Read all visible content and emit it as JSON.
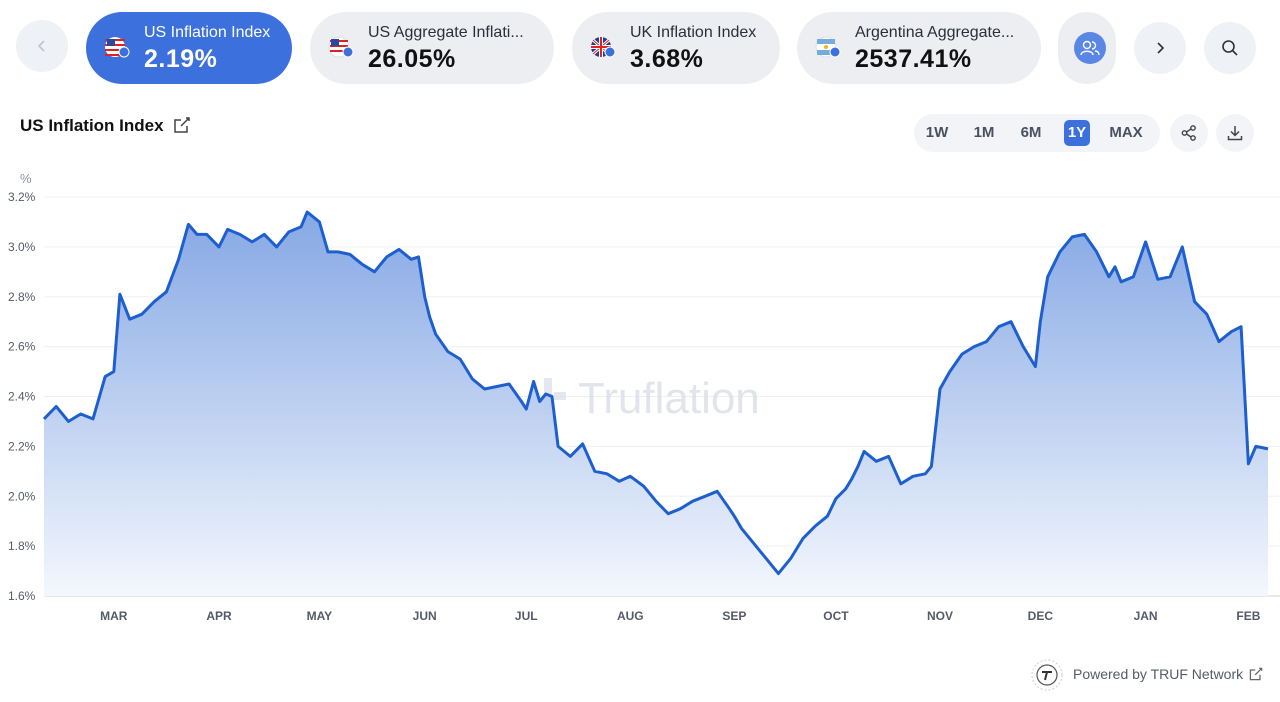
{
  "carousel": {
    "items": [
      {
        "title": "US Inflation Index",
        "value": "2.19%",
        "active": true,
        "flag": "us-flag-icon"
      },
      {
        "title": "US Aggregate Inflati...",
        "value": "26.05%",
        "active": false,
        "flag": "us-flag-icon"
      },
      {
        "title": "UK Inflation Index",
        "value": "3.68%",
        "active": false,
        "flag": "uk-flag-icon"
      },
      {
        "title": "Argentina Aggregate...",
        "value": "2537.41%",
        "active": false,
        "flag": "argentina-flag-icon"
      }
    ],
    "prev_icon": "chevron-left-icon",
    "next_icon": "chevron-right-icon",
    "search_icon": "search-icon",
    "people_icon": "users-icon"
  },
  "header": {
    "title": "US Inflation Index",
    "ranges": [
      "1W",
      "1M",
      "6M",
      "1Y",
      "MAX"
    ],
    "active_range": "1Y",
    "share_icon": "share-icon",
    "download_icon": "download-icon"
  },
  "watermark": "Truflation",
  "footer": {
    "text": "Powered by TRUF Network"
  },
  "colors": {
    "accent": "#3c70dd",
    "line": "#1e5fd0",
    "fill_top": "#7fa3e3",
    "fill_bottom": "#f3f7fd"
  },
  "chart_data": {
    "type": "area",
    "ylabel": "%",
    "ylim": [
      1.6,
      3.2
    ],
    "yticks": [
      "3.2%",
      "3.0%",
      "2.8%",
      "2.6%",
      "2.4%",
      "2.2%",
      "2.0%",
      "1.8%",
      "1.6%"
    ],
    "ytick_values": [
      3.2,
      3.0,
      2.8,
      2.6,
      2.4,
      2.2,
      2.0,
      1.8,
      1.6
    ],
    "xticks": [
      "MAR",
      "APR",
      "MAY",
      "JUN",
      "JUL",
      "AUG",
      "SEP",
      "OCT",
      "NOV",
      "DEC",
      "JAN",
      "FEB"
    ],
    "xtick_positions": [
      0.057,
      0.143,
      0.225,
      0.311,
      0.394,
      0.479,
      0.564,
      0.647,
      0.732,
      0.814,
      0.9,
      0.984
    ],
    "grid": true,
    "series": [
      {
        "x": [
          0,
          0.01,
          0.02,
          0.03,
          0.04,
          0.05,
          0.057,
          0.062,
          0.07,
          0.08,
          0.09,
          0.1,
          0.11,
          0.118,
          0.125,
          0.133,
          0.143,
          0.15,
          0.16,
          0.17,
          0.18,
          0.19,
          0.2,
          0.21,
          0.215,
          0.225,
          0.232,
          0.24,
          0.25,
          0.26,
          0.27,
          0.28,
          0.29,
          0.3,
          0.306,
          0.311,
          0.315,
          0.32,
          0.33,
          0.34,
          0.35,
          0.36,
          0.37,
          0.38,
          0.39,
          0.394,
          0.4,
          0.405,
          0.41,
          0.415,
          0.42,
          0.43,
          0.44,
          0.45,
          0.46,
          0.47,
          0.479,
          0.49,
          0.5,
          0.51,
          0.52,
          0.53,
          0.54,
          0.55,
          0.56,
          0.564,
          0.57,
          0.58,
          0.59,
          0.6,
          0.61,
          0.62,
          0.63,
          0.64,
          0.647,
          0.655,
          0.66,
          0.665,
          0.67,
          0.68,
          0.69,
          0.7,
          0.71,
          0.72,
          0.725,
          0.732,
          0.74,
          0.75,
          0.76,
          0.77,
          0.78,
          0.79,
          0.8,
          0.81,
          0.814,
          0.82,
          0.83,
          0.84,
          0.85,
          0.86,
          0.87,
          0.875,
          0.88,
          0.89,
          0.9,
          0.91,
          0.92,
          0.93,
          0.94,
          0.95,
          0.96,
          0.97,
          0.978,
          0.984,
          0.99,
          1.0
        ],
        "y": [
          2.31,
          2.36,
          2.3,
          2.33,
          2.31,
          2.48,
          2.5,
          2.81,
          2.71,
          2.73,
          2.78,
          2.82,
          2.95,
          3.09,
          3.05,
          3.05,
          3.0,
          3.07,
          3.05,
          3.02,
          3.05,
          3.0,
          3.06,
          3.08,
          3.14,
          3.1,
          2.98,
          2.98,
          2.97,
          2.93,
          2.9,
          2.96,
          2.99,
          2.95,
          2.96,
          2.8,
          2.72,
          2.65,
          2.58,
          2.55,
          2.47,
          2.43,
          2.44,
          2.45,
          2.38,
          2.35,
          2.46,
          2.38,
          2.41,
          2.4,
          2.2,
          2.16,
          2.21,
          2.1,
          2.09,
          2.06,
          2.08,
          2.04,
          1.98,
          1.93,
          1.95,
          1.98,
          2.0,
          2.02,
          1.95,
          1.92,
          1.87,
          1.81,
          1.75,
          1.69,
          1.75,
          1.83,
          1.88,
          1.92,
          1.99,
          2.03,
          2.07,
          2.12,
          2.18,
          2.14,
          2.16,
          2.05,
          2.08,
          2.09,
          2.12,
          2.43,
          2.5,
          2.57,
          2.6,
          2.62,
          2.68,
          2.7,
          2.6,
          2.52,
          2.7,
          2.88,
          2.98,
          3.04,
          3.05,
          2.98,
          2.88,
          2.92,
          2.86,
          2.88,
          3.02,
          2.87,
          2.88,
          3.0,
          2.78,
          2.73,
          2.62,
          2.66,
          2.68,
          2.13,
          2.2,
          2.19
        ]
      }
    ]
  }
}
